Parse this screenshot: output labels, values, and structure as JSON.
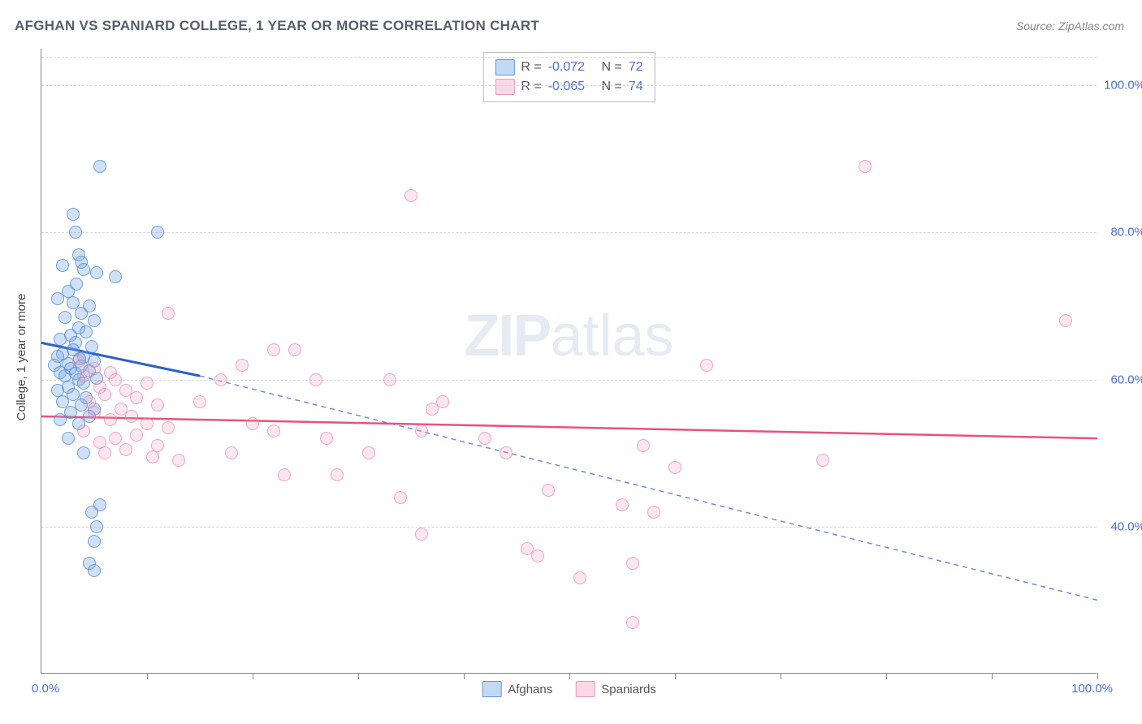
{
  "title": "AFGHAN VS SPANIARD COLLEGE, 1 YEAR OR MORE CORRELATION CHART",
  "source": "Source: ZipAtlas.com",
  "watermark_bold": "ZIP",
  "watermark_light": "atlas",
  "y_axis_title": "College, 1 year or more",
  "chart": {
    "type": "scatter",
    "xlim": [
      0,
      100
    ],
    "ylim": [
      20,
      105
    ],
    "x_start_label": "0.0%",
    "x_end_label": "100.0%",
    "y_ticks": [
      40,
      60,
      80,
      100
    ],
    "y_tick_labels": [
      "40.0%",
      "60.0%",
      "80.0%",
      "100.0%"
    ],
    "x_tick_positions": [
      10,
      20,
      30,
      40,
      50,
      60,
      70,
      80,
      90,
      100
    ],
    "background_color": "#ffffff",
    "grid_color": "#d8d8d8",
    "grid_dash": "4,4",
    "series": [
      {
        "name": "Afghans",
        "color_fill": "rgba(120,170,230,0.35)",
        "color_stroke": "rgba(70,130,210,0.7)",
        "marker_radius": 8,
        "R": "-0.072",
        "N": "72",
        "trend": {
          "x1": 0,
          "y1": 65,
          "x2": 15,
          "y2": 60.5,
          "stroke": "#2b5fc9",
          "width": 3,
          "dash": "none"
        },
        "trend_ext": {
          "x1": 15,
          "y1": 60.5,
          "x2": 100,
          "y2": 30,
          "stroke": "#6a8fd8",
          "width": 1.5,
          "dash": "6,5"
        },
        "points": [
          [
            5.5,
            89
          ],
          [
            3,
            82.5
          ],
          [
            3.2,
            80
          ],
          [
            11,
            80
          ],
          [
            3.5,
            77
          ],
          [
            3.8,
            76
          ],
          [
            2,
            75.5
          ],
          [
            4,
            75
          ],
          [
            5.2,
            74.5
          ],
          [
            7,
            74
          ],
          [
            3.3,
            73
          ],
          [
            2.5,
            72
          ],
          [
            1.5,
            71
          ],
          [
            3,
            70.5
          ],
          [
            4.5,
            70
          ],
          [
            3.8,
            69
          ],
          [
            2.2,
            68.5
          ],
          [
            5,
            68
          ],
          [
            3.5,
            67
          ],
          [
            4.2,
            66.5
          ],
          [
            2.8,
            66
          ],
          [
            1.8,
            65.5
          ],
          [
            3.2,
            65
          ],
          [
            4.8,
            64.5
          ],
          [
            3,
            64
          ],
          [
            2,
            63.5
          ],
          [
            1.5,
            63.2
          ],
          [
            4,
            63
          ],
          [
            3.6,
            62.8
          ],
          [
            5,
            62.5
          ],
          [
            2.5,
            62.2
          ],
          [
            1.2,
            62
          ],
          [
            3.8,
            61.8
          ],
          [
            2.8,
            61.5
          ],
          [
            4.5,
            61.2
          ],
          [
            1.8,
            61
          ],
          [
            3.2,
            60.8
          ],
          [
            2.2,
            60.5
          ],
          [
            5.2,
            60.2
          ],
          [
            3.5,
            60
          ],
          [
            4,
            59.5
          ],
          [
            2.5,
            59
          ],
          [
            1.5,
            58.5
          ],
          [
            3,
            58
          ],
          [
            4.2,
            57.5
          ],
          [
            2,
            57
          ],
          [
            3.8,
            56.5
          ],
          [
            5,
            56
          ],
          [
            2.8,
            55.5
          ],
          [
            4.5,
            55
          ],
          [
            1.8,
            54.5
          ],
          [
            3.5,
            54
          ],
          [
            2.5,
            52
          ],
          [
            4,
            50
          ],
          [
            5.5,
            43
          ],
          [
            4.8,
            42
          ],
          [
            5.2,
            40
          ],
          [
            5,
            38
          ],
          [
            4.5,
            35
          ],
          [
            5,
            34
          ]
        ]
      },
      {
        "name": "Spaniards",
        "color_fill": "rgba(240,160,190,0.25)",
        "color_stroke": "rgba(230,120,160,0.6)",
        "marker_radius": 8,
        "R": "-0.065",
        "N": "74",
        "trend": {
          "x1": 0,
          "y1": 55,
          "x2": 100,
          "y2": 52,
          "stroke": "#e8527d",
          "width": 2.5,
          "dash": "none"
        },
        "points": [
          [
            35,
            85
          ],
          [
            78,
            89
          ],
          [
            97,
            68
          ],
          [
            12,
            69
          ],
          [
            3.5,
            62.5
          ],
          [
            5,
            61.5
          ],
          [
            6.5,
            61
          ],
          [
            4,
            60.5
          ],
          [
            7,
            60
          ],
          [
            10,
            59.5
          ],
          [
            5.5,
            59
          ],
          [
            8,
            58.5
          ],
          [
            6,
            58
          ],
          [
            9,
            57.5
          ],
          [
            4.5,
            57
          ],
          [
            11,
            56.5
          ],
          [
            7.5,
            56
          ],
          [
            5,
            55.5
          ],
          [
            8.5,
            55
          ],
          [
            6.5,
            54.5
          ],
          [
            10,
            54
          ],
          [
            12,
            53.5
          ],
          [
            4,
            53
          ],
          [
            9,
            52.5
          ],
          [
            7,
            52
          ],
          [
            5.5,
            51.5
          ],
          [
            11,
            51
          ],
          [
            8,
            50.5
          ],
          [
            6,
            50
          ],
          [
            10.5,
            49.5
          ],
          [
            13,
            49
          ],
          [
            22,
            64
          ],
          [
            24,
            64
          ],
          [
            26,
            60
          ],
          [
            19,
            62
          ],
          [
            17,
            60
          ],
          [
            15,
            57
          ],
          [
            20,
            54
          ],
          [
            22,
            53
          ],
          [
            18,
            50
          ],
          [
            23,
            47
          ],
          [
            27,
            52
          ],
          [
            33,
            60
          ],
          [
            38,
            57
          ],
          [
            36,
            53
          ],
          [
            31,
            50
          ],
          [
            28,
            47
          ],
          [
            34,
            44
          ],
          [
            37,
            56
          ],
          [
            42,
            52
          ],
          [
            44,
            50
          ],
          [
            48,
            45
          ],
          [
            55,
            43
          ],
          [
            46,
            37
          ],
          [
            47,
            36
          ],
          [
            36,
            39
          ],
          [
            51,
            33
          ],
          [
            57,
            51
          ],
          [
            60,
            48
          ],
          [
            63,
            62
          ],
          [
            74,
            49
          ],
          [
            56,
            27
          ],
          [
            58,
            42
          ],
          [
            56,
            35
          ]
        ]
      }
    ]
  },
  "legend_top": {
    "rows": [
      {
        "swatch": "blue",
        "r_label": "R =",
        "r_val": "-0.072",
        "n_label": "N =",
        "n_val": "72"
      },
      {
        "swatch": "pink",
        "r_label": "R =",
        "r_val": "-0.065",
        "n_label": "N =",
        "n_val": "74"
      }
    ]
  },
  "legend_bottom": {
    "items": [
      {
        "swatch": "blue",
        "label": "Afghans"
      },
      {
        "swatch": "pink",
        "label": "Spaniards"
      }
    ]
  }
}
